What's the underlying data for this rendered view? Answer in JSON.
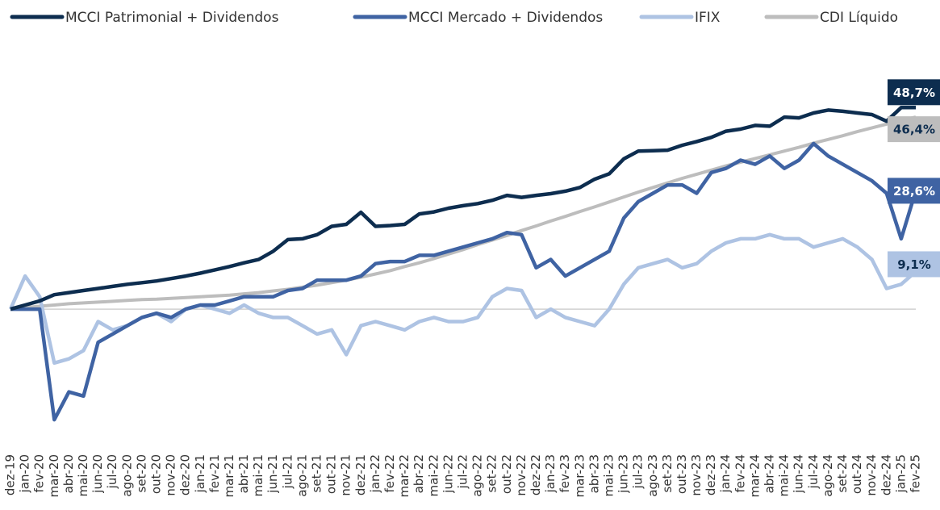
{
  "chart_data": {
    "type": "line",
    "categories": [
      "dez-19",
      "jan-20",
      "fev-20",
      "mar-20",
      "abr-20",
      "mai-20",
      "jun-20",
      "jul-20",
      "ago-20",
      "set-20",
      "out-20",
      "nov-20",
      "dez-20",
      "jan-21",
      "fev-21",
      "mar-21",
      "abr-21",
      "mai-21",
      "jun-21",
      "jul-21",
      "ago-21",
      "set-21",
      "out-21",
      "nov-21",
      "dez-21",
      "jan-22",
      "fev-22",
      "mar-22",
      "abr-22",
      "mai-22",
      "jun-22",
      "jul-22",
      "ago-22",
      "set-22",
      "out-22",
      "nov-22",
      "dez-22",
      "jan-23",
      "fev-23",
      "mar-23",
      "abr-23",
      "mai-23",
      "jun-23",
      "jul-23",
      "ago-23",
      "set-23",
      "out-23",
      "nov-23",
      "dez-23",
      "jan-24",
      "fev-24",
      "mar-24",
      "abr-24",
      "mai-24",
      "jun-24",
      "jul-24",
      "ago-24",
      "set-24",
      "out-24",
      "nov-24",
      "dez-24",
      "jan-25",
      "fev-25"
    ],
    "series": [
      {
        "name": "MCCI Patrimonial + Dividendos",
        "color": "#0d2d4f",
        "values": [
          0,
          1.0,
          2.0,
          3.5,
          4.0,
          4.5,
          5.0,
          5.5,
          6.0,
          6.4,
          6.8,
          7.4,
          8.0,
          8.7,
          9.5,
          10.3,
          11.2,
          12.0,
          14.0,
          16.8,
          17.0,
          18.0,
          20.0,
          20.5,
          23.4,
          20.0,
          20.2,
          20.5,
          23.0,
          23.5,
          24.4,
          25.0,
          25.5,
          26.3,
          27.5,
          27.0,
          27.5,
          27.9,
          28.5,
          29.4,
          31.4,
          32.7,
          36.3,
          38.2,
          38.3,
          38.4,
          39.6,
          40.5,
          41.5,
          43.0,
          43.5,
          44.4,
          44.2,
          46.4,
          46.2,
          47.4,
          48.1,
          47.8,
          47.4,
          47.0,
          45.4,
          48.7,
          48.7
        ],
        "value_labels": {
          "62": "48,7%"
        }
      },
      {
        "name": "MCCI Mercado + Dividendos",
        "color": "#3f63a3",
        "values": [
          0,
          0,
          0,
          -26.7,
          -20,
          -21,
          -8,
          -6,
          -4,
          -2,
          -1,
          -2,
          0,
          1,
          1,
          2,
          3,
          3,
          3,
          4.5,
          5,
          7,
          7,
          7,
          8,
          11,
          11.5,
          11.5,
          13,
          13,
          14,
          15,
          16,
          17,
          18.5,
          18,
          10,
          12,
          8,
          10,
          12,
          14,
          22,
          26,
          28,
          30,
          30,
          28,
          33,
          34,
          36,
          35,
          37,
          34,
          36,
          40,
          37,
          35,
          33,
          31,
          28,
          17,
          28.6
        ],
        "value_labels": {
          "62": "28,6%"
        }
      },
      {
        "name": "IFIX",
        "color": "#aec3e3",
        "values": [
          0,
          8,
          3,
          -13,
          -12,
          -10,
          -3,
          -5,
          -4,
          -2,
          -1,
          -3,
          0,
          1,
          0,
          -1,
          1,
          -1,
          -2,
          -2,
          -4,
          -6,
          -5,
          -11,
          -4,
          -3,
          -4,
          -5,
          -3,
          -2,
          -3,
          -3,
          -2,
          3,
          5,
          4.5,
          -2,
          0,
          -2,
          -3,
          -4,
          0,
          6,
          10,
          11,
          12,
          10,
          11,
          14,
          16,
          17,
          17,
          18,
          17,
          17,
          15,
          16,
          17,
          15,
          12,
          5,
          6,
          9.1
        ],
        "value_labels": {
          "62": "9,1%"
        }
      },
      {
        "name": "CDI Líquido",
        "color": "#bdbdbd",
        "values": [
          0,
          0.4,
          0.7,
          1.0,
          1.3,
          1.5,
          1.7,
          1.9,
          2.1,
          2.3,
          2.4,
          2.6,
          2.8,
          3.0,
          3.2,
          3.4,
          3.7,
          4.0,
          4.4,
          4.8,
          5.3,
          5.8,
          6.4,
          7.0,
          7.7,
          8.5,
          9.3,
          10.3,
          11.2,
          12.2,
          13.3,
          14.4,
          15.6,
          16.7,
          17.8,
          19.0,
          20.1,
          21.3,
          22.4,
          23.6,
          24.7,
          25.9,
          27.1,
          28.3,
          29.4,
          30.5,
          31.6,
          32.6,
          33.6,
          34.6,
          35.5,
          36.4,
          37.3,
          38.2,
          39.1,
          40.1,
          41.0,
          41.9,
          42.9,
          43.8,
          44.7,
          45.6,
          46.4
        ],
        "value_labels": {
          "62": "46,4%"
        }
      }
    ],
    "ylim": [
      -30,
      55
    ],
    "legend": "top"
  }
}
